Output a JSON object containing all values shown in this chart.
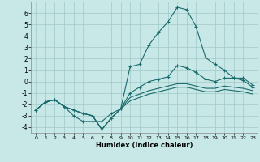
{
  "xlabel": "Humidex (Indice chaleur)",
  "xlim": [
    -0.5,
    23.5
  ],
  "ylim": [
    -4.5,
    7.0
  ],
  "yticks": [
    -4,
    -3,
    -2,
    -1,
    0,
    1,
    2,
    3,
    4,
    5,
    6
  ],
  "xticks": [
    0,
    1,
    2,
    3,
    4,
    5,
    6,
    7,
    8,
    9,
    10,
    11,
    12,
    13,
    14,
    15,
    16,
    17,
    18,
    19,
    20,
    21,
    22,
    23
  ],
  "bg_color": "#c8e8e8",
  "line_color": "#1a6b6b",
  "grid_color": "#a0c8c8",
  "lines": [
    {
      "x": [
        0,
        1,
        2,
        3,
        4,
        5,
        6,
        7,
        8,
        9,
        10,
        11,
        12,
        13,
        14,
        15,
        16,
        17,
        18,
        19,
        20,
        21,
        22,
        23
      ],
      "y": [
        -2.5,
        -1.8,
        -1.6,
        -2.2,
        -3.0,
        -3.5,
        -3.5,
        -3.5,
        -2.8,
        -2.4,
        1.3,
        1.5,
        3.2,
        4.3,
        5.2,
        6.5,
        6.3,
        4.8,
        2.1,
        1.5,
        1.0,
        0.3,
        0.3,
        -0.3
      ],
      "marker": true
    },
    {
      "x": [
        0,
        1,
        2,
        3,
        4,
        5,
        6,
        7,
        8,
        9,
        10,
        11,
        12,
        13,
        14,
        15,
        16,
        17,
        18,
        19,
        20,
        21,
        22,
        23
      ],
      "y": [
        -2.5,
        -1.8,
        -1.6,
        -2.2,
        -2.5,
        -2.8,
        -3.0,
        -4.2,
        -3.2,
        -2.4,
        -1.0,
        -0.5,
        0.0,
        0.2,
        0.4,
        1.4,
        1.2,
        0.8,
        0.2,
        0.0,
        0.3,
        0.3,
        0.1,
        -0.5
      ],
      "marker": true
    },
    {
      "x": [
        0,
        1,
        2,
        3,
        4,
        5,
        6,
        7,
        8,
        9,
        10,
        11,
        12,
        13,
        14,
        15,
        16,
        17,
        18,
        19,
        20,
        21,
        22,
        23
      ],
      "y": [
        -2.5,
        -1.8,
        -1.6,
        -2.2,
        -2.5,
        -2.8,
        -3.0,
        -4.2,
        -3.2,
        -2.4,
        -1.4,
        -1.1,
        -0.8,
        -0.6,
        -0.4,
        -0.2,
        -0.2,
        -0.4,
        -0.6,
        -0.6,
        -0.4,
        -0.5,
        -0.6,
        -0.8
      ],
      "marker": false
    },
    {
      "x": [
        0,
        1,
        2,
        3,
        4,
        5,
        6,
        7,
        8,
        9,
        10,
        11,
        12,
        13,
        14,
        15,
        16,
        17,
        18,
        19,
        20,
        21,
        22,
        23
      ],
      "y": [
        -2.5,
        -1.8,
        -1.6,
        -2.2,
        -2.5,
        -2.8,
        -3.0,
        -4.2,
        -3.2,
        -2.4,
        -1.7,
        -1.4,
        -1.1,
        -0.9,
        -0.7,
        -0.5,
        -0.5,
        -0.7,
        -0.9,
        -0.9,
        -0.7,
        -0.8,
        -0.9,
        -1.1
      ],
      "marker": false
    }
  ]
}
